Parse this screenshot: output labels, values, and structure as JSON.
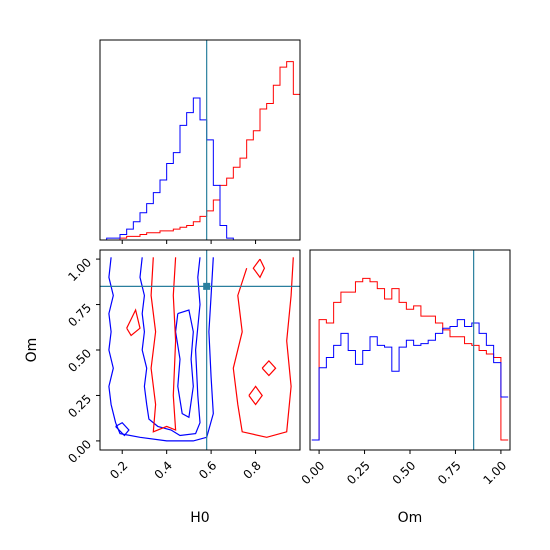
{
  "chart_data": [
    {
      "type": "histogram",
      "panel": "H0 marginal",
      "xlim": [
        0.1,
        1.0
      ],
      "bins": [
        0.1,
        0.13,
        0.16,
        0.19,
        0.22,
        0.25,
        0.28,
        0.31,
        0.34,
        0.37,
        0.4,
        0.43,
        0.46,
        0.49,
        0.52,
        0.55,
        0.58,
        0.61,
        0.64,
        0.67,
        0.7,
        0.73,
        0.76,
        0.79,
        0.82,
        0.85,
        0.88,
        0.91,
        0.94,
        0.97,
        1.0
      ],
      "series": [
        {
          "color": "#ff0000",
          "values": [
            0,
            0,
            0,
            0.01,
            0.02,
            0.02,
            0.03,
            0.04,
            0.04,
            0.05,
            0.05,
            0.06,
            0.07,
            0.08,
            0.1,
            0.13,
            0.16,
            0.22,
            0.3,
            0.34,
            0.4,
            0.45,
            0.55,
            0.6,
            0.72,
            0.75,
            0.85,
            0.95,
            0.98,
            0.8
          ]
        },
        {
          "color": "#0000ff",
          "values": [
            0,
            0.01,
            0.01,
            0.03,
            0.06,
            0.1,
            0.15,
            0.2,
            0.26,
            0.33,
            0.42,
            0.48,
            0.63,
            0.7,
            0.78,
            0.66,
            0.55,
            0.3,
            0.08,
            0.01,
            0,
            0,
            0,
            0,
            0,
            0,
            0,
            0,
            0,
            0
          ]
        }
      ],
      "truth_line": {
        "x": 0.58,
        "color": "#2a7f9e"
      }
    },
    {
      "type": "contour",
      "panel": "H0 vs Om",
      "xlabel": "H0",
      "ylabel": "Om",
      "xlim": [
        0.1,
        1.0
      ],
      "ylim": [
        -0.05,
        1.05
      ],
      "xticks": [
        "0.2",
        "0.4",
        "0.6",
        "0.8"
      ],
      "yticks": [
        "0.00",
        "0.25",
        "0.50",
        "0.75",
        "1.00"
      ],
      "series": [
        {
          "color": "#0000ff",
          "contours": [
            [
              [
                0.15,
                1.01
              ],
              [
                0.14,
                0.9
              ],
              [
                0.16,
                0.8
              ],
              [
                0.14,
                0.7
              ],
              [
                0.15,
                0.6
              ],
              [
                0.14,
                0.5
              ],
              [
                0.16,
                0.4
              ],
              [
                0.14,
                0.3
              ],
              [
                0.15,
                0.2
              ],
              [
                0.17,
                0.1
              ],
              [
                0.19,
                0.04
              ],
              [
                0.28,
                0.02
              ],
              [
                0.4,
                0.0
              ],
              [
                0.52,
                0.0
              ],
              [
                0.58,
                0.02
              ],
              [
                0.61,
                0.15
              ],
              [
                0.6,
                0.35
              ],
              [
                0.59,
                0.6
              ],
              [
                0.6,
                0.8
              ],
              [
                0.61,
                1.01
              ]
            ],
            [
              [
                0.29,
                1.01
              ],
              [
                0.28,
                0.9
              ],
              [
                0.3,
                0.8
              ],
              [
                0.29,
                0.7
              ],
              [
                0.3,
                0.6
              ],
              [
                0.29,
                0.5
              ],
              [
                0.31,
                0.4
              ],
              [
                0.3,
                0.3
              ],
              [
                0.31,
                0.2
              ],
              [
                0.32,
                0.12
              ],
              [
                0.36,
                0.08
              ],
              [
                0.42,
                0.06
              ],
              [
                0.46,
                0.03
              ],
              [
                0.53,
                0.04
              ],
              [
                0.55,
                0.1
              ],
              [
                0.54,
                0.25
              ],
              [
                0.53,
                0.5
              ],
              [
                0.55,
                0.75
              ],
              [
                0.54,
                0.9
              ],
              [
                0.55,
                1.01
              ]
            ],
            [
              [
                0.45,
                0.7
              ],
              [
                0.44,
                0.6
              ],
              [
                0.46,
                0.45
              ],
              [
                0.45,
                0.3
              ],
              [
                0.47,
                0.15
              ],
              [
                0.5,
                0.13
              ],
              [
                0.52,
                0.3
              ],
              [
                0.51,
                0.45
              ],
              [
                0.52,
                0.6
              ],
              [
                0.5,
                0.72
              ],
              [
                0.45,
                0.7
              ]
            ],
            [
              [
                0.17,
                0.08
              ],
              [
                0.21,
                0.03
              ],
              [
                0.23,
                0.06
              ],
              [
                0.2,
                0.1
              ],
              [
                0.17,
                0.08
              ]
            ]
          ]
        },
        {
          "color": "#ff0000",
          "contours": [
            [
              [
                0.34,
                1.01
              ],
              [
                0.33,
                0.8
              ],
              [
                0.35,
                0.6
              ],
              [
                0.33,
                0.4
              ],
              [
                0.35,
                0.2
              ],
              [
                0.34,
                0.05
              ],
              [
                0.4,
                0.08
              ],
              [
                0.44,
                0.06
              ],
              [
                0.43,
                0.25
              ],
              [
                0.44,
                0.55
              ],
              [
                0.43,
                0.8
              ],
              [
                0.44,
                1.01
              ]
            ],
            [
              [
                0.76,
                0.95
              ],
              [
                0.72,
                0.8
              ],
              [
                0.74,
                0.6
              ],
              [
                0.7,
                0.4
              ],
              [
                0.72,
                0.2
              ],
              [
                0.74,
                0.05
              ],
              [
                0.85,
                0.02
              ],
              [
                0.94,
                0.05
              ],
              [
                0.96,
                0.3
              ],
              [
                0.94,
                0.55
              ],
              [
                0.96,
                0.8
              ],
              [
                0.97,
                1.01
              ]
            ],
            [
              [
                0.22,
                0.62
              ],
              [
                0.26,
                0.72
              ],
              [
                0.28,
                0.62
              ],
              [
                0.24,
                0.58
              ],
              [
                0.22,
                0.62
              ]
            ],
            [
              [
                0.82,
                1.0
              ],
              [
                0.79,
                0.95
              ],
              [
                0.82,
                0.9
              ],
              [
                0.84,
                0.95
              ],
              [
                0.82,
                1.0
              ]
            ],
            [
              [
                0.77,
                0.25
              ],
              [
                0.8,
                0.3
              ],
              [
                0.83,
                0.25
              ],
              [
                0.8,
                0.2
              ],
              [
                0.77,
                0.25
              ]
            ],
            [
              [
                0.83,
                0.4
              ],
              [
                0.86,
                0.44
              ],
              [
                0.89,
                0.4
              ],
              [
                0.86,
                0.36
              ],
              [
                0.83,
                0.4
              ]
            ]
          ]
        }
      ],
      "truth_point": {
        "x": 0.58,
        "y": 0.85,
        "color": "#2a7f9e"
      }
    },
    {
      "type": "histogram",
      "panel": "Om marginal",
      "xlabel": "Om",
      "xlim": [
        -0.05,
        1.05
      ],
      "xticks": [
        "0.00",
        "0.25",
        "0.50",
        "0.75",
        "1.00"
      ],
      "bins": [
        -0.04,
        0.0,
        0.04,
        0.08,
        0.12,
        0.16,
        0.2,
        0.24,
        0.28,
        0.32,
        0.36,
        0.4,
        0.44,
        0.48,
        0.52,
        0.56,
        0.6,
        0.64,
        0.68,
        0.72,
        0.76,
        0.8,
        0.84,
        0.88,
        0.92,
        0.96,
        1.0,
        1.04
      ],
      "series": [
        {
          "color": "#ff0000",
          "values": [
            0.0,
            0.7,
            0.68,
            0.8,
            0.86,
            0.86,
            0.92,
            0.94,
            0.92,
            0.88,
            0.82,
            0.88,
            0.8,
            0.76,
            0.78,
            0.72,
            0.72,
            0.68,
            0.64,
            0.6,
            0.6,
            0.56,
            0.55,
            0.52,
            0.5,
            0.48,
            0.0
          ]
        },
        {
          "color": "#0000ff",
          "values": [
            0.0,
            0.42,
            0.48,
            0.55,
            0.62,
            0.52,
            0.44,
            0.52,
            0.6,
            0.55,
            0.54,
            0.4,
            0.54,
            0.58,
            0.55,
            0.56,
            0.58,
            0.62,
            0.65,
            0.66,
            0.7,
            0.66,
            0.68,
            0.62,
            0.55,
            0.45,
            0.25
          ]
        }
      ],
      "truth_line": {
        "x": 0.85,
        "color": "#2a7f9e"
      }
    }
  ]
}
